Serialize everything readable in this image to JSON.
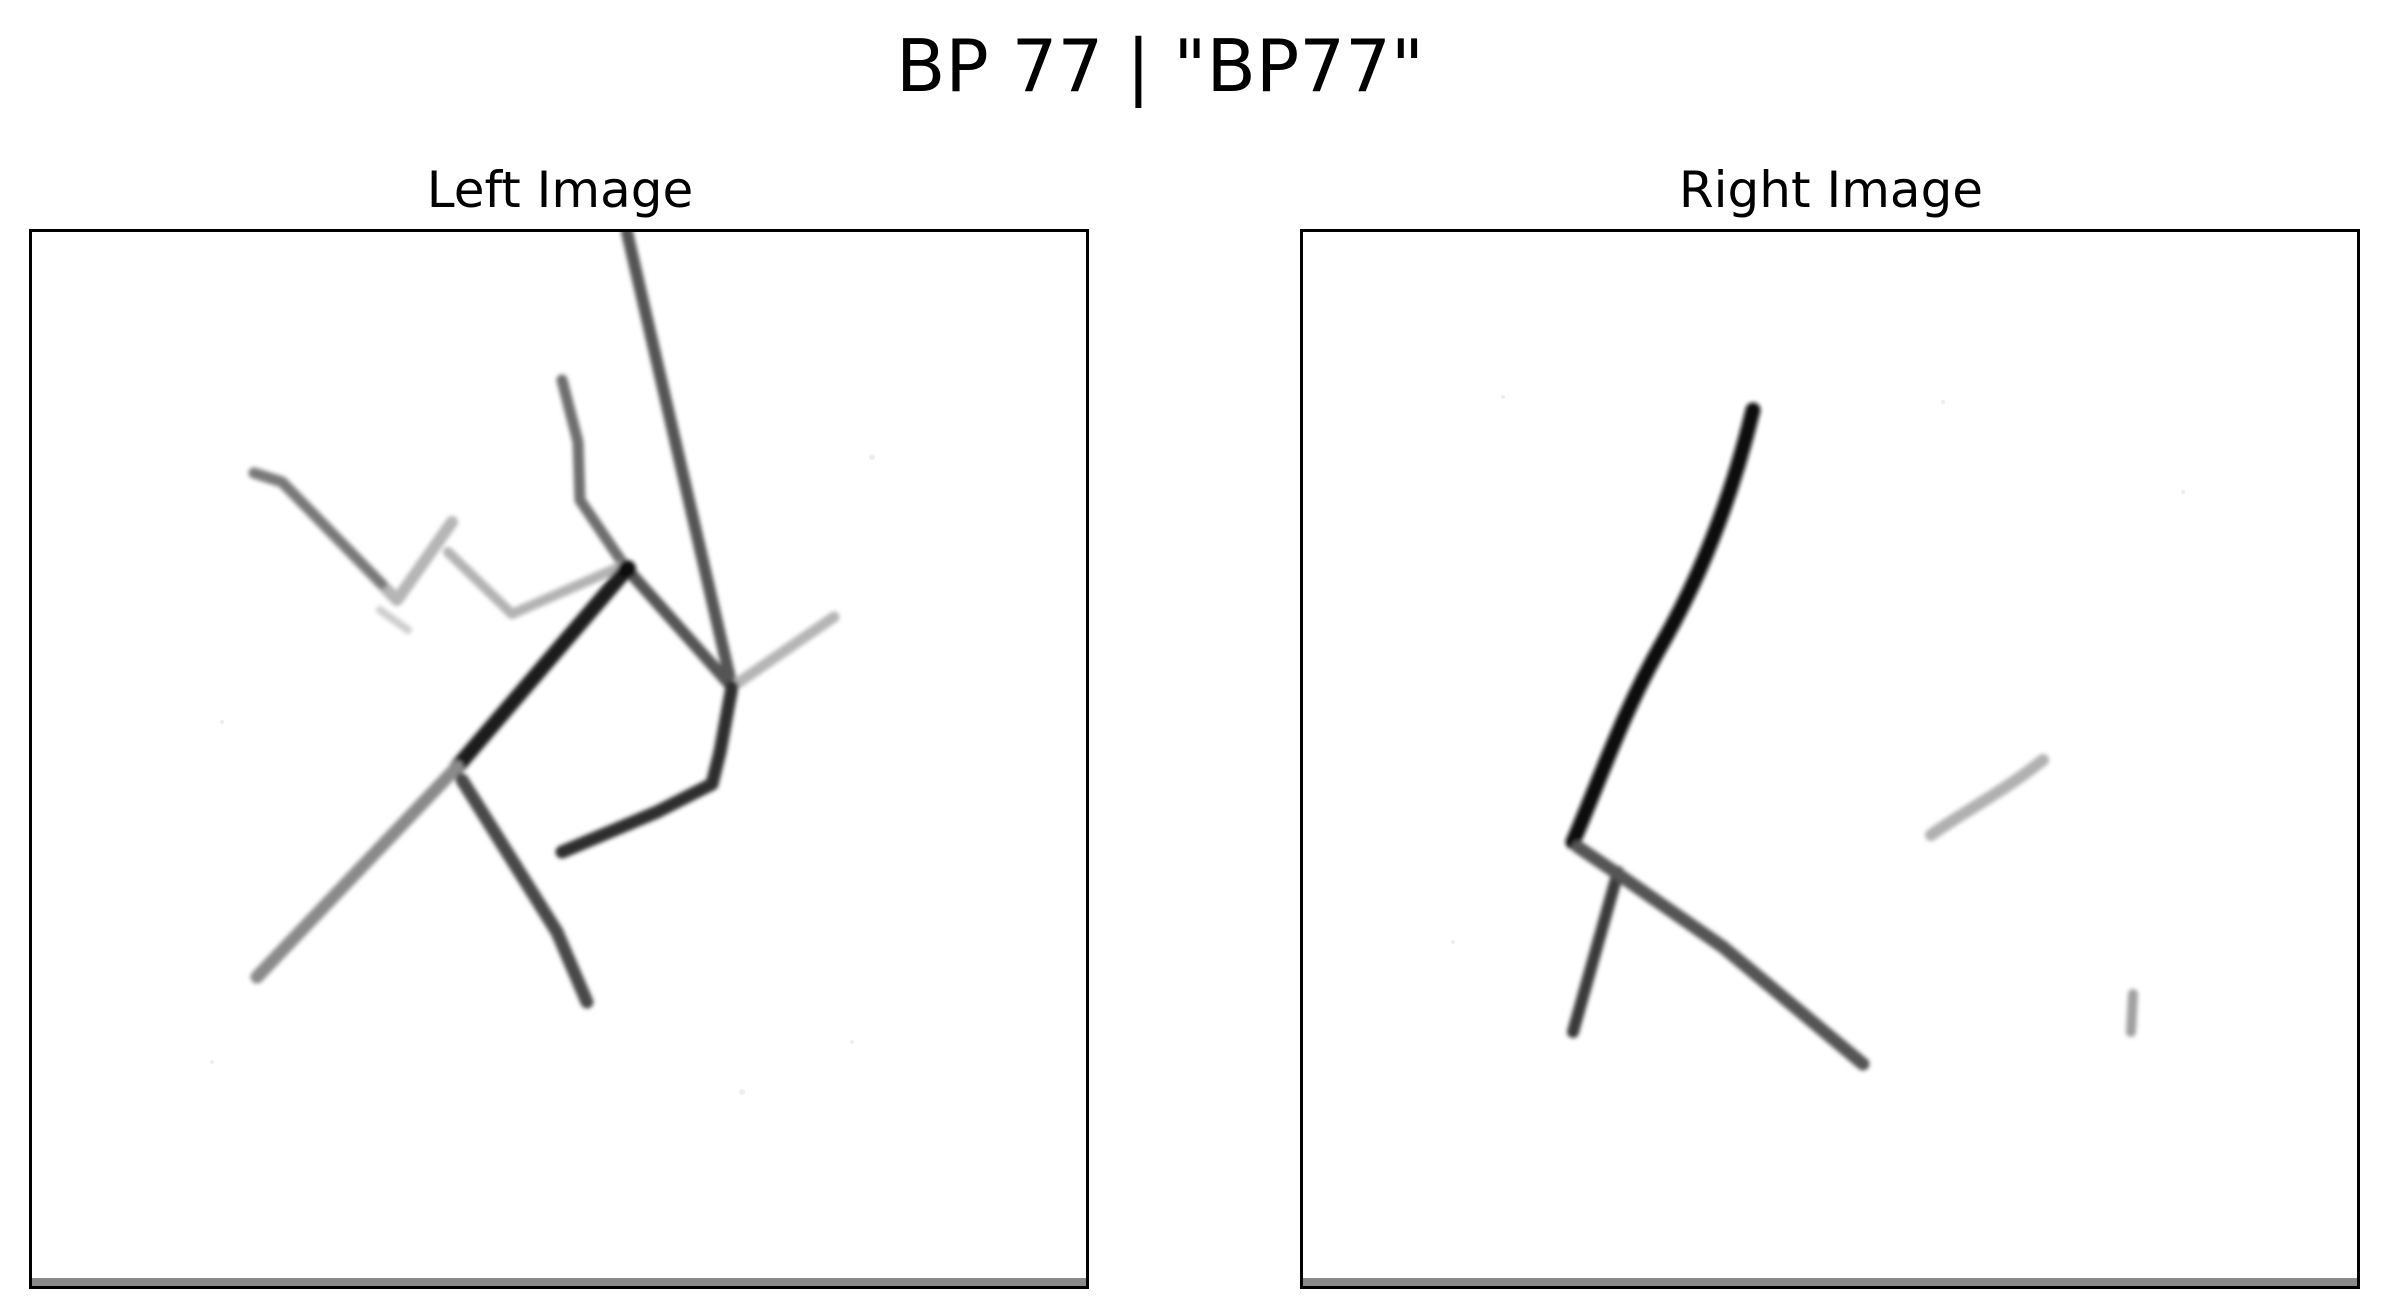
{
  "figure": {
    "title": "BP 77 | \"BP77\""
  },
  "panels": {
    "left": {
      "title": "Left Image",
      "colors": {
        "stroke_dark": "#111111",
        "stroke_mid": "#555555",
        "stroke_light": "#a8a8a8",
        "frame": "#000000",
        "bottom_band": "#8a8a8a"
      }
    },
    "right": {
      "title": "Right Image",
      "colors": {
        "stroke_dark": "#111111",
        "stroke_mid": "#555555",
        "stroke_light": "#a8a8a8",
        "frame": "#000000",
        "bottom_band": "#8a8a8a"
      }
    }
  }
}
